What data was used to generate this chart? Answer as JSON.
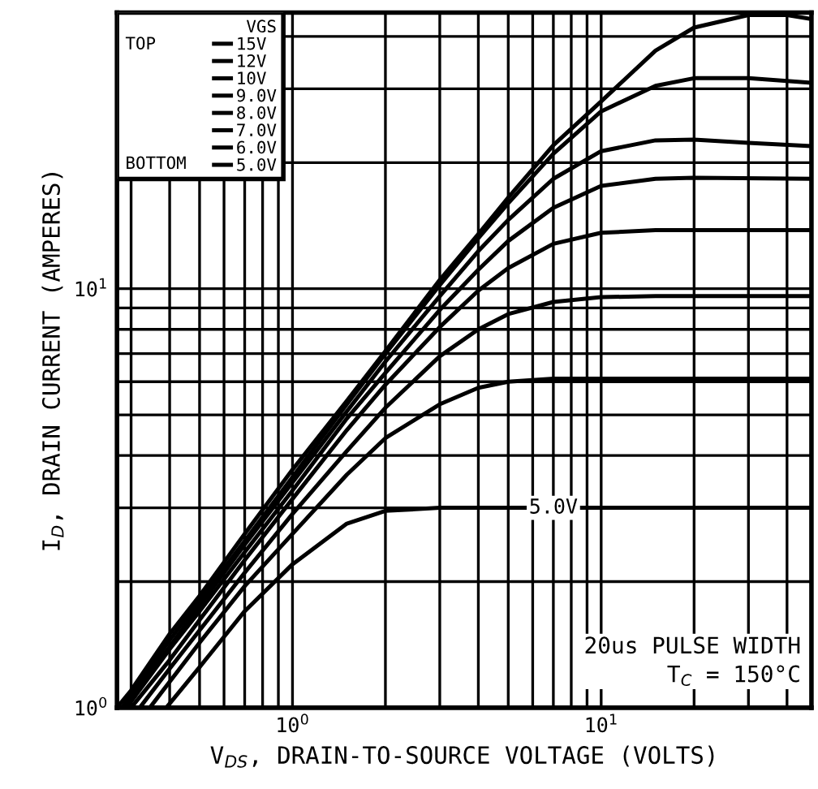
{
  "chart_data": {
    "type": "line",
    "xlabel": "V$_{DS}$, DRAIN-TO-SOURCE VOLTAGE (VOLTS)",
    "ylabel": "I$_{D}$, DRAIN CURRENT (AMPERES)",
    "legend_title": "VGS",
    "legend": "top left",
    "log": "xy",
    "grid": true,
    "marker": "none",
    "line_style": "solid",
    "xlim": [
      0.27,
      48
    ],
    "ylim": [
      1,
      45.6
    ],
    "xticks": [
      {
        "value": 0.3,
        "label": null
      },
      {
        "value": 0.4,
        "label": null
      },
      {
        "value": 0.5,
        "label": null
      },
      {
        "value": 0.6,
        "label": null
      },
      {
        "value": 0.7,
        "label": null
      },
      {
        "value": 0.8,
        "label": null
      },
      {
        "value": 0.9,
        "label": null
      },
      {
        "value": 1,
        "label": "10$^{0}$"
      },
      {
        "value": 2,
        "label": null
      },
      {
        "value": 3,
        "label": null
      },
      {
        "value": 4,
        "label": null
      },
      {
        "value": 5,
        "label": null
      },
      {
        "value": 6,
        "label": null
      },
      {
        "value": 7,
        "label": null
      },
      {
        "value": 8,
        "label": null
      },
      {
        "value": 9,
        "label": null
      },
      {
        "value": 10,
        "label": "10$^{1}$"
      },
      {
        "value": 20,
        "label": null
      },
      {
        "value": 30,
        "label": null
      },
      {
        "value": 40,
        "label": null
      }
    ],
    "yticks": [
      {
        "value": 1,
        "label": "10$^{0}$"
      },
      {
        "value": 2,
        "label": null
      },
      {
        "value": 3,
        "label": null
      },
      {
        "value": 4,
        "label": null
      },
      {
        "value": 5,
        "label": null
      },
      {
        "value": 6,
        "label": null
      },
      {
        "value": 7,
        "label": null
      },
      {
        "value": 8,
        "label": null
      },
      {
        "value": 9,
        "label": null
      },
      {
        "value": 10,
        "label": "10$^{1}$"
      },
      {
        "value": 20,
        "label": null
      },
      {
        "value": 30,
        "label": null
      },
      {
        "value": 40,
        "label": null
      }
    ],
    "series": [
      {
        "name": "15V",
        "color": "#000000",
        "x": [
          0.27,
          0.3,
          0.4,
          0.5,
          0.7,
          1,
          1.5,
          2,
          3,
          4,
          5,
          7,
          10,
          15,
          20,
          30,
          40,
          48
        ],
        "values": [
          1.0,
          1.1,
          1.5,
          1.85,
          2.6,
          3.7,
          5.4,
          7.1,
          10.5,
          13.5,
          16.5,
          22,
          28,
          37,
          42,
          45,
          45,
          44
        ]
      },
      {
        "name": "12V",
        "color": "#000000",
        "x": [
          0.28,
          0.4,
          0.5,
          0.7,
          1,
          1.5,
          2,
          3,
          4,
          5,
          7,
          10,
          15,
          20,
          30,
          48
        ],
        "values": [
          1.0,
          1.45,
          1.8,
          2.5,
          3.55,
          5.3,
          7.0,
          10.2,
          13.2,
          16,
          21,
          26.5,
          30.5,
          31.8,
          31.8,
          31
        ]
      },
      {
        "name": "10V",
        "color": "#000000",
        "x": [
          0.285,
          0.4,
          0.5,
          0.7,
          1,
          1.5,
          2,
          3,
          4,
          5,
          7,
          10,
          15,
          20,
          30,
          48
        ],
        "values": [
          1.0,
          1.4,
          1.75,
          2.45,
          3.45,
          5.1,
          6.7,
          9.6,
          12.3,
          14.6,
          18.3,
          21.3,
          22.6,
          22.7,
          22.3,
          21.9
        ]
      },
      {
        "name": "9.0V",
        "color": "#000000",
        "x": [
          0.29,
          0.4,
          0.5,
          0.7,
          1,
          1.5,
          2,
          3,
          4,
          5,
          7,
          10,
          15,
          20,
          48
        ],
        "values": [
          1.0,
          1.38,
          1.7,
          2.35,
          3.3,
          4.9,
          6.3,
          8.9,
          11.1,
          13,
          15.6,
          17.6,
          18.3,
          18.4,
          18.3
        ]
      },
      {
        "name": "8.0V",
        "color": "#000000",
        "x": [
          0.3,
          0.4,
          0.5,
          0.7,
          1,
          1.5,
          2,
          3,
          4,
          5,
          7,
          10,
          15,
          48
        ],
        "values": [
          1.0,
          1.3,
          1.62,
          2.25,
          3.15,
          4.6,
          5.9,
          8.1,
          9.9,
          11.2,
          12.8,
          13.6,
          13.8,
          13.8
        ]
      },
      {
        "name": "7.0V",
        "color": "#000000",
        "x": [
          0.32,
          0.4,
          0.5,
          0.7,
          1,
          1.5,
          2,
          3,
          4,
          5,
          7,
          10,
          15,
          48
        ],
        "values": [
          1.0,
          1.24,
          1.53,
          2.1,
          2.9,
          4.1,
          5.2,
          6.9,
          8.0,
          8.7,
          9.3,
          9.55,
          9.6,
          9.6
        ]
      },
      {
        "name": "6.0V",
        "color": "#000000",
        "x": [
          0.345,
          0.5,
          0.7,
          1,
          1.5,
          2,
          3,
          4,
          5,
          7,
          48
        ],
        "values": [
          1.0,
          1.43,
          1.95,
          2.6,
          3.6,
          4.4,
          5.3,
          5.8,
          6.0,
          6.1,
          6.1
        ]
      },
      {
        "name": "5.0V",
        "color": "#000000",
        "x": [
          0.39,
          0.5,
          0.7,
          1,
          1.5,
          2,
          3,
          48
        ],
        "values": [
          1.0,
          1.25,
          1.7,
          2.2,
          2.75,
          2.95,
          3.0,
          3.0
        ]
      }
    ],
    "annotations": [
      "TOP",
      "BOTTOM",
      "20us PULSE WIDTH\nT$_{C}$ = 150°C",
      {
        "text": "5.0V",
        "x": 7,
        "y": 3.0
      }
    ]
  }
}
